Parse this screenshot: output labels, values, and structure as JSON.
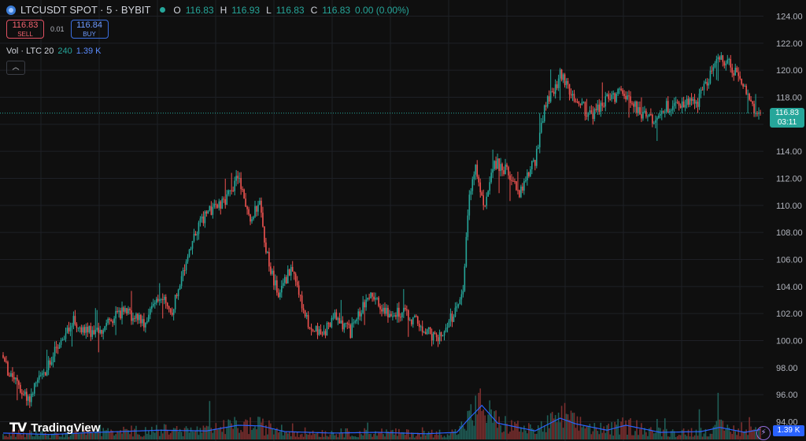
{
  "header": {
    "symbol": "LTCUSDT SPOT · 5 · BYBIT",
    "ohlc": {
      "o_label": "O",
      "o": "116.83",
      "h_label": "H",
      "h": "116.93",
      "l_label": "L",
      "l": "116.83",
      "c_label": "C",
      "c": "116.83",
      "change": "0.00 (0.00%)"
    }
  },
  "trade": {
    "sell_price": "116.83",
    "sell_label": "SELL",
    "spread": "0.01",
    "buy_price": "116.84",
    "buy_label": "BUY"
  },
  "volume_legend": {
    "name": "Vol · LTC 20",
    "value": "240",
    "ma": "1.39 K"
  },
  "collapse_icon": "chevron-up-icon",
  "brand": {
    "logo": "tradingview-logo",
    "name": "TradingView"
  },
  "price_tag": {
    "price": "116.83",
    "countdown": "03:11"
  },
  "volume_tag": "1.39 K",
  "colors": {
    "up": "#26a69a",
    "down": "#ef5350",
    "ma": "#2962ff",
    "background": "#0f0f0f",
    "grid": "#1e2026"
  },
  "chart_data": {
    "type": "candlestick",
    "y_axis": {
      "ticks": [
        94.0,
        96.0,
        98.0,
        100.0,
        102.0,
        104.0,
        106.0,
        108.0,
        110.0,
        112.0,
        114.0,
        116.0,
        118.0,
        120.0,
        122.0,
        124.0
      ],
      "range": [
        93.5,
        125
      ]
    },
    "grid": true,
    "last_price": 116.83,
    "price_anchors": [
      {
        "i": 0,
        "p": 98.5
      },
      {
        "i": 6,
        "p": 97.2
      },
      {
        "i": 16,
        "p": 95.6
      },
      {
        "i": 24,
        "p": 97.2
      },
      {
        "i": 34,
        "p": 99.4
      },
      {
        "i": 44,
        "p": 101.5
      },
      {
        "i": 54,
        "p": 100.6
      },
      {
        "i": 64,
        "p": 100.9
      },
      {
        "i": 76,
        "p": 102.2
      },
      {
        "i": 90,
        "p": 101.3
      },
      {
        "i": 100,
        "p": 103.2
      },
      {
        "i": 108,
        "p": 102.2
      },
      {
        "i": 116,
        "p": 105.4
      },
      {
        "i": 124,
        "p": 108.3
      },
      {
        "i": 132,
        "p": 109.6
      },
      {
        "i": 140,
        "p": 110.1
      },
      {
        "i": 150,
        "p": 112.0
      },
      {
        "i": 158,
        "p": 108.7
      },
      {
        "i": 164,
        "p": 110.4
      },
      {
        "i": 168,
        "p": 106.6
      },
      {
        "i": 176,
        "p": 103.2
      },
      {
        "i": 184,
        "p": 105.4
      },
      {
        "i": 194,
        "p": 101.5
      },
      {
        "i": 204,
        "p": 100.3
      },
      {
        "i": 212,
        "p": 101.8
      },
      {
        "i": 222,
        "p": 100.6
      },
      {
        "i": 234,
        "p": 103.5
      },
      {
        "i": 244,
        "p": 102.2
      },
      {
        "i": 256,
        "p": 102.0
      },
      {
        "i": 266,
        "p": 101.2
      },
      {
        "i": 278,
        "p": 100.0
      },
      {
        "i": 288,
        "p": 102.0
      },
      {
        "i": 294,
        "p": 103.8
      },
      {
        "i": 298,
        "p": 111.0
      },
      {
        "i": 302,
        "p": 112.7
      },
      {
        "i": 308,
        "p": 109.6
      },
      {
        "i": 314,
        "p": 113.2
      },
      {
        "i": 322,
        "p": 112.6
      },
      {
        "i": 330,
        "p": 111.0
      },
      {
        "i": 340,
        "p": 113.3
      },
      {
        "i": 346,
        "p": 117.2
      },
      {
        "i": 356,
        "p": 119.6
      },
      {
        "i": 366,
        "p": 117.8
      },
      {
        "i": 376,
        "p": 116.6
      },
      {
        "i": 386,
        "p": 117.8
      },
      {
        "i": 396,
        "p": 118.4
      },
      {
        "i": 406,
        "p": 117.0
      },
      {
        "i": 416,
        "p": 116.3
      },
      {
        "i": 424,
        "p": 117.3
      },
      {
        "i": 434,
        "p": 117.5
      },
      {
        "i": 444,
        "p": 117.7
      },
      {
        "i": 452,
        "p": 119.7
      },
      {
        "i": 458,
        "p": 121.0
      },
      {
        "i": 466,
        "p": 120.2
      },
      {
        "i": 474,
        "p": 118.6
      },
      {
        "i": 480,
        "p": 116.8
      },
      {
        "i": 484,
        "p": 116.83
      }
    ],
    "volume_anchors": [
      {
        "i": 0,
        "v": 0.9
      },
      {
        "i": 30,
        "v": 0.7
      },
      {
        "i": 60,
        "v": 1.0
      },
      {
        "i": 100,
        "v": 1.3
      },
      {
        "i": 130,
        "v": 1.2
      },
      {
        "i": 150,
        "v": 2.0
      },
      {
        "i": 165,
        "v": 1.9
      },
      {
        "i": 180,
        "v": 1.1
      },
      {
        "i": 210,
        "v": 0.9
      },
      {
        "i": 240,
        "v": 1.0
      },
      {
        "i": 270,
        "v": 0.8
      },
      {
        "i": 290,
        "v": 1.0
      },
      {
        "i": 298,
        "v": 3.0
      },
      {
        "i": 306,
        "v": 4.8
      },
      {
        "i": 316,
        "v": 2.3
      },
      {
        "i": 340,
        "v": 1.2
      },
      {
        "i": 356,
        "v": 3.0
      },
      {
        "i": 366,
        "v": 2.2
      },
      {
        "i": 386,
        "v": 1.3
      },
      {
        "i": 398,
        "v": 2.0
      },
      {
        "i": 420,
        "v": 1.0
      },
      {
        "i": 446,
        "v": 1.1
      },
      {
        "i": 458,
        "v": 1.7
      },
      {
        "i": 474,
        "v": 1.0
      },
      {
        "i": 484,
        "v": 1.39
      }
    ]
  }
}
